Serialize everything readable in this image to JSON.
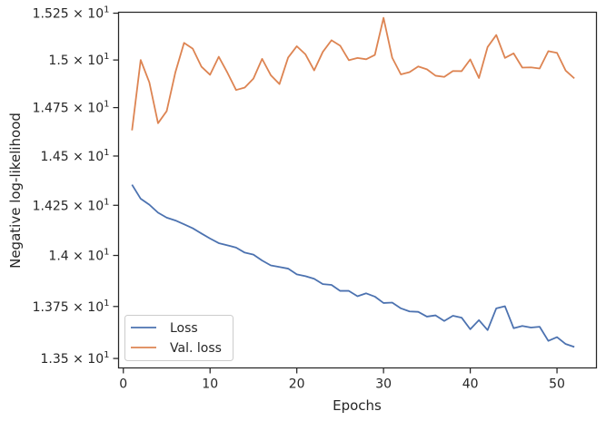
{
  "chart_data": {
    "type": "line",
    "xlabel": "Epochs",
    "ylabel": "Negative log-likelihood",
    "xlim": [
      -0.55,
      54.55
    ],
    "ylim": [
      13.455,
      15.255
    ],
    "y_scale": "log",
    "grid": false,
    "legend_position": "lower-left",
    "x_ticks": [
      0,
      10,
      20,
      30,
      40,
      50
    ],
    "x_tick_labels": [
      "0",
      "10",
      "20",
      "30",
      "40",
      "50"
    ],
    "y_ticks": [
      13.5,
      13.75,
      14.0,
      14.25,
      14.5,
      14.75,
      15.0,
      15.25
    ],
    "y_tick_labels": [
      {
        "m": "1.35",
        "e": "1"
      },
      {
        "m": "1.375",
        "e": "1"
      },
      {
        "m": "1.4",
        "e": "1"
      },
      {
        "m": "1.425",
        "e": "1"
      },
      {
        "m": "1.45",
        "e": "1"
      },
      {
        "m": "1.475",
        "e": "1"
      },
      {
        "m": "1.5",
        "e": "1"
      },
      {
        "m": "1.525",
        "e": "1"
      }
    ],
    "x": [
      1,
      2,
      3,
      4,
      5,
      6,
      7,
      8,
      9,
      10,
      11,
      12,
      13,
      14,
      15,
      16,
      17,
      18,
      19,
      20,
      21,
      22,
      23,
      24,
      25,
      26,
      27,
      28,
      29,
      30,
      31,
      32,
      33,
      34,
      35,
      36,
      37,
      38,
      39,
      40,
      41,
      42,
      43,
      44,
      45,
      46,
      47,
      48,
      49,
      50,
      51,
      52
    ],
    "series": [
      {
        "name": "Loss",
        "color": "#4c72b0",
        "values": [
          14.354,
          14.283,
          14.253,
          14.213,
          14.188,
          14.174,
          14.155,
          14.135,
          14.109,
          14.084,
          14.061,
          14.05,
          14.039,
          14.014,
          14.004,
          13.975,
          13.951,
          13.943,
          13.935,
          13.907,
          13.898,
          13.885,
          13.859,
          13.855,
          13.826,
          13.826,
          13.8,
          13.814,
          13.798,
          13.767,
          13.769,
          13.741,
          13.726,
          13.724,
          13.701,
          13.707,
          13.68,
          13.705,
          13.696,
          13.64,
          13.684,
          13.636,
          13.741,
          13.751,
          13.645,
          13.656,
          13.648,
          13.652,
          13.584,
          13.602,
          13.569,
          13.555
        ]
      },
      {
        "name": "Val. loss",
        "color": "#dd8452",
        "values": [
          14.632,
          15.0,
          14.882,
          14.669,
          14.732,
          14.935,
          15.091,
          15.06,
          14.965,
          14.922,
          15.017,
          14.933,
          14.842,
          14.855,
          14.902,
          15.006,
          14.92,
          14.873,
          15.013,
          15.073,
          15.03,
          14.945,
          15.043,
          15.105,
          15.076,
          14.999,
          15.011,
          15.004,
          15.027,
          15.225,
          15.012,
          14.924,
          14.936,
          14.966,
          14.951,
          14.917,
          14.911,
          14.942,
          14.941,
          15.003,
          14.905,
          15.069,
          15.133,
          15.011,
          15.035,
          14.96,
          14.961,
          14.955,
          15.047,
          15.038,
          14.944,
          14.903
        ]
      }
    ]
  }
}
